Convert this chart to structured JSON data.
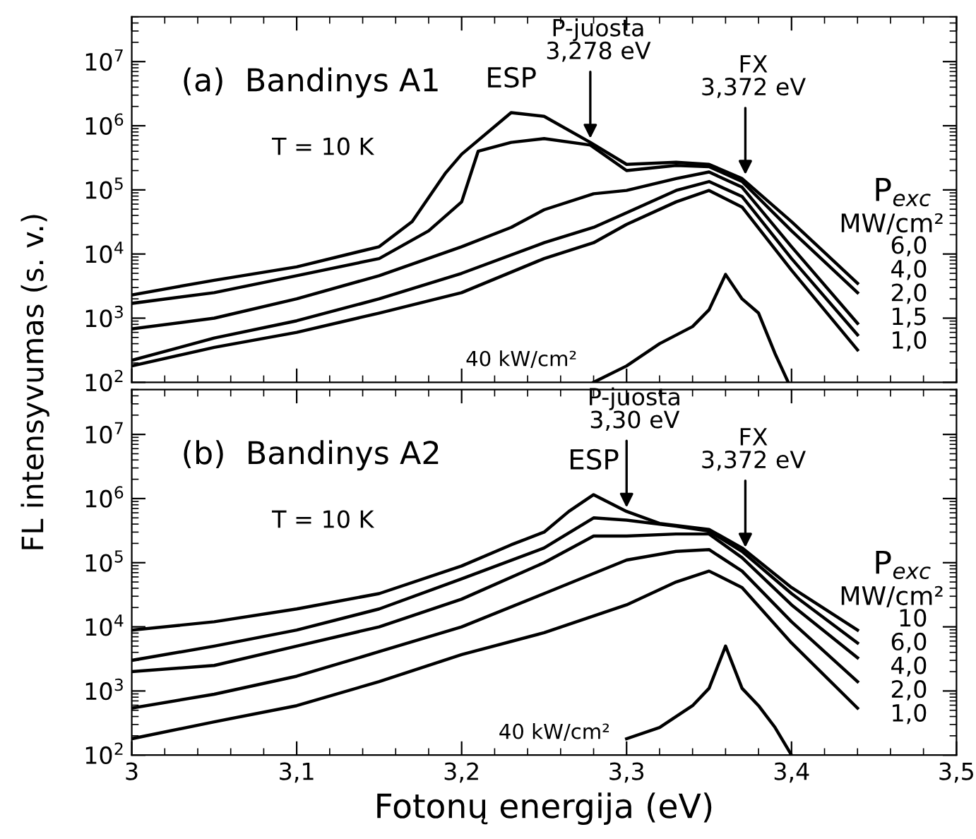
{
  "chart_data": [
    {
      "type": "line",
      "title": "(a)  Bandinys A1",
      "ylabel": "FL intensyvumas (s. v.)",
      "log": "y",
      "xlim": [
        3,
        3.5
      ],
      "ylim": [
        100,
        50000000
      ],
      "xticks": [
        3,
        3.1,
        3.2,
        3.3,
        3.4,
        3.5
      ],
      "yticks": [
        {
          "value": 100,
          "label": "10$^{2}$"
        },
        {
          "value": 1000,
          "label": "10$^{3}$"
        },
        {
          "value": 10000,
          "label": "10$^{4}$"
        },
        {
          "value": 100000,
          "label": "10$^{5}$"
        },
        {
          "value": 1000000,
          "label": "10$^{6}$"
        },
        {
          "value": 10000000,
          "label": "10$^{7}$"
        }
      ],
      "tick_labels": "y",
      "legend": "right",
      "grid": false,
      "marker": "none",
      "line_style": "solid",
      "series": [
        {
          "name": "6,0",
          "color": "#000000",
          "x": [
            3.0,
            3.05,
            3.1,
            3.15,
            3.17,
            3.19,
            3.2,
            3.23,
            3.25,
            3.278,
            3.3,
            3.33,
            3.35,
            3.37,
            3.4,
            3.44
          ],
          "values": [
            2300,
            3900,
            6300,
            13000,
            32000,
            180000,
            360000,
            1600000,
            1400000,
            550000,
            250000,
            270000,
            250000,
            150000,
            32000,
            3500
          ]
        },
        {
          "name": "4,0",
          "color": "#000000",
          "x": [
            3.0,
            3.05,
            3.1,
            3.15,
            3.18,
            3.2,
            3.21,
            3.23,
            3.25,
            3.278,
            3.3,
            3.33,
            3.35,
            3.37,
            3.4,
            3.44
          ],
          "values": [
            1700,
            2500,
            4600,
            8500,
            23000,
            65000,
            400000,
            550000,
            630000,
            500000,
            200000,
            240000,
            230000,
            135000,
            23000,
            2500
          ]
        },
        {
          "name": "2,0",
          "color": "#000000",
          "x": [
            3.0,
            3.05,
            3.1,
            3.15,
            3.2,
            3.23,
            3.25,
            3.28,
            3.3,
            3.33,
            3.35,
            3.37,
            3.4,
            3.44
          ],
          "values": [
            680,
            1000,
            2000,
            4600,
            13000,
            26000,
            49000,
            87000,
            98000,
            150000,
            190000,
            110000,
            13000,
            830
          ]
        },
        {
          "name": "1,5",
          "color": "#000000",
          "x": [
            3.0,
            3.05,
            3.1,
            3.15,
            3.2,
            3.25,
            3.28,
            3.3,
            3.33,
            3.35,
            3.37,
            3.4,
            3.44
          ],
          "values": [
            220,
            490,
            910,
            2000,
            5000,
            15000,
            26000,
            44000,
            98000,
            135000,
            79000,
            8500,
            550
          ]
        },
        {
          "name": "1,0",
          "color": "#000000",
          "x": [
            3.0,
            3.05,
            3.1,
            3.15,
            3.2,
            3.25,
            3.28,
            3.3,
            3.33,
            3.35,
            3.37,
            3.4,
            3.44
          ],
          "values": [
            180,
            350,
            600,
            1200,
            2500,
            8500,
            15000,
            29000,
            65000,
            98000,
            54000,
            5600,
            320
          ]
        },
        {
          "name": "40 kW/cm²",
          "color": "#000000",
          "x": [
            3.28,
            3.3,
            3.32,
            3.34,
            3.35,
            3.36,
            3.37,
            3.38,
            3.39,
            3.398
          ],
          "values": [
            100,
            180,
            400,
            740,
            1350,
            4800,
            2000,
            1200,
            280,
            100
          ]
        }
      ],
      "annotations": [
        "T = 10 K",
        "P$_{exc}$",
        "MW/cm²",
        {
          "text": "ESP",
          "x": 3.23,
          "y": 1600000
        },
        {
          "text": "P-juosta\n3,278 eV",
          "x": 3.278,
          "y": 550000
        },
        {
          "text": "FX\n3,372 eV",
          "x": 3.372,
          "y": 150000
        }
      ]
    },
    {
      "type": "line",
      "title": "(b)  Bandinys A2",
      "xlabel": "Fotonų energija (eV)",
      "log": "y",
      "xlim": [
        3,
        3.5
      ],
      "ylim": [
        100,
        50000000
      ],
      "xticks": [
        3,
        {
          "value": 3.1,
          "label": "3,1"
        },
        {
          "value": 3.2,
          "label": "3,2"
        },
        {
          "value": 3.3,
          "label": "3,3"
        },
        {
          "value": 3.4,
          "label": "3,4"
        },
        {
          "value": 3.5,
          "label": "3,5"
        }
      ],
      "yticks": [
        {
          "value": 100,
          "label": "10$^{2}$"
        },
        {
          "value": 1000,
          "label": "10$^{3}$"
        },
        {
          "value": 10000,
          "label": "10$^{4}$"
        },
        {
          "value": 100000,
          "label": "10$^{5}$"
        },
        {
          "value": 1000000,
          "label": "10$^{6}$"
        },
        {
          "value": 10000000,
          "label": "10$^{7}$"
        }
      ],
      "legend": "right",
      "grid": false,
      "marker": "none",
      "line_style": "solid",
      "series": [
        {
          "name": "10",
          "color": "#000000",
          "x": [
            3.0,
            3.05,
            3.1,
            3.15,
            3.2,
            3.23,
            3.25,
            3.265,
            3.28,
            3.3,
            3.32,
            3.35,
            3.37,
            3.4,
            3.44
          ],
          "values": [
            8900,
            12000,
            19000,
            33000,
            89000,
            190000,
            300000,
            630000,
            1150000,
            630000,
            410000,
            330000,
            170000,
            41000,
            8900
          ]
        },
        {
          "name": "6,0",
          "color": "#000000",
          "x": [
            3.0,
            3.05,
            3.1,
            3.15,
            3.2,
            3.25,
            3.28,
            3.3,
            3.33,
            3.35,
            3.37,
            3.4,
            3.44
          ],
          "values": [
            3000,
            5000,
            8900,
            19000,
            56000,
            170000,
            500000,
            460000,
            370000,
            310000,
            150000,
            33000,
            5600
          ]
        },
        {
          "name": "4,0",
          "color": "#000000",
          "x": [
            3.0,
            3.05,
            3.1,
            3.15,
            3.2,
            3.25,
            3.28,
            3.3,
            3.33,
            3.35,
            3.37,
            3.4,
            3.44
          ],
          "values": [
            2000,
            2500,
            5000,
            10000,
            27000,
            100000,
            260000,
            260000,
            280000,
            280000,
            120000,
            22000,
            3300
          ]
        },
        {
          "name": "2,0",
          "color": "#000000",
          "x": [
            3.0,
            3.05,
            3.1,
            3.15,
            3.2,
            3.25,
            3.3,
            3.33,
            3.35,
            3.37,
            3.4,
            3.44
          ],
          "values": [
            540,
            890,
            1700,
            4100,
            10000,
            33000,
            110000,
            150000,
            160000,
            74000,
            12000,
            1400
          ]
        },
        {
          "name": "1,0",
          "color": "#000000",
          "x": [
            3.0,
            3.05,
            3.1,
            3.15,
            3.2,
            3.25,
            3.3,
            3.33,
            3.35,
            3.37,
            3.4,
            3.44
          ],
          "values": [
            180,
            330,
            590,
            1400,
            3700,
            8100,
            22000,
            50000,
            74000,
            41000,
            5600,
            540
          ]
        },
        {
          "name": "40 kW/cm²",
          "color": "#000000",
          "x": [
            3.3,
            3.32,
            3.34,
            3.35,
            3.36,
            3.37,
            3.38,
            3.39,
            3.4
          ],
          "values": [
            180,
            270,
            590,
            1100,
            5000,
            1100,
            590,
            270,
            100
          ]
        }
      ],
      "annotations": [
        "T = 10 K",
        "P$_{exc}$",
        "MW/cm²",
        {
          "text": "ESP",
          "x": 3.28,
          "y": 1150000
        },
        {
          "text": "P-juosta\n3,30 eV",
          "x": 3.3,
          "y": 630000
        },
        {
          "text": "FX\n3,372 eV",
          "x": 3.372,
          "y": 150000
        }
      ]
    }
  ]
}
